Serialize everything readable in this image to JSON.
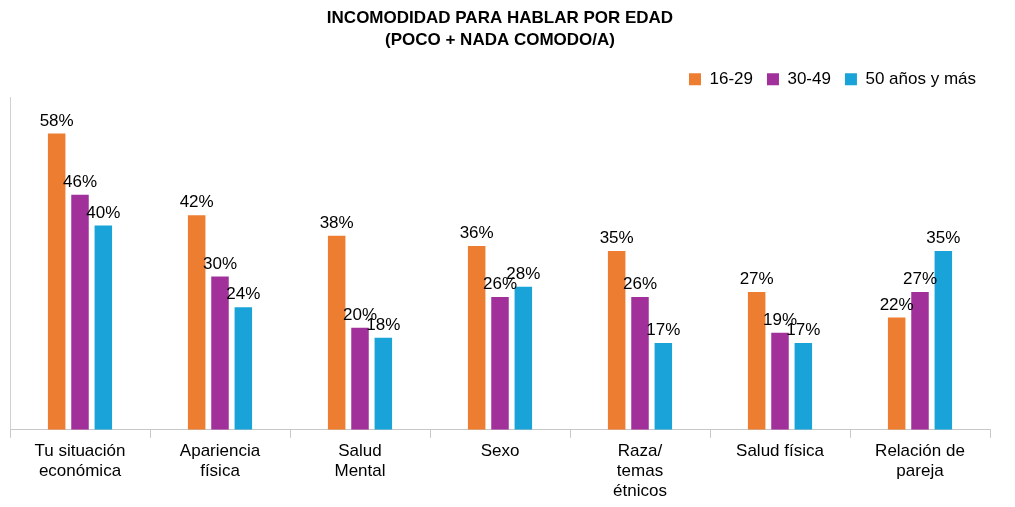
{
  "chart_data": {
    "type": "bar",
    "title": "INCOMODIDAD PARA HABLAR POR EDAD",
    "subtitle": "(POCO + NADA COMODO/A)",
    "categories": [
      [
        "Tu situación",
        "económica"
      ],
      [
        "Apariencia",
        "física"
      ],
      [
        "Salud",
        "Mental"
      ],
      [
        "Sexo"
      ],
      [
        "Raza/",
        "temas",
        "étnicos"
      ],
      [
        "Salud física"
      ],
      [
        "Relación de",
        "pareja"
      ]
    ],
    "series": [
      {
        "name": "16-29",
        "color": "#ED7D31",
        "values": [
          58,
          42,
          38,
          36,
          35,
          27,
          22
        ],
        "value_labels": [
          "58%",
          "42%",
          "38%",
          "36%",
          "35%",
          "27%",
          "22%"
        ]
      },
      {
        "name": "30-49",
        "color": "#A1309B",
        "values": [
          46,
          30,
          20,
          26,
          26,
          19,
          27
        ],
        "value_labels": [
          "46%",
          "30%",
          "20%",
          "26%",
          "26%",
          "19%",
          "27%"
        ]
      },
      {
        "name": "50 años y más",
        "color": "#1AA3D9",
        "values": [
          40,
          24,
          18,
          28,
          17,
          17,
          35
        ],
        "value_labels": [
          "40%",
          "24%",
          "18%",
          "28%",
          "17%",
          "17%",
          "35%"
        ]
      }
    ],
    "ylim": [
      0,
      65
    ],
    "grid": false,
    "legend": "top-right",
    "data_labels": true,
    "tick_labels": "x"
  }
}
